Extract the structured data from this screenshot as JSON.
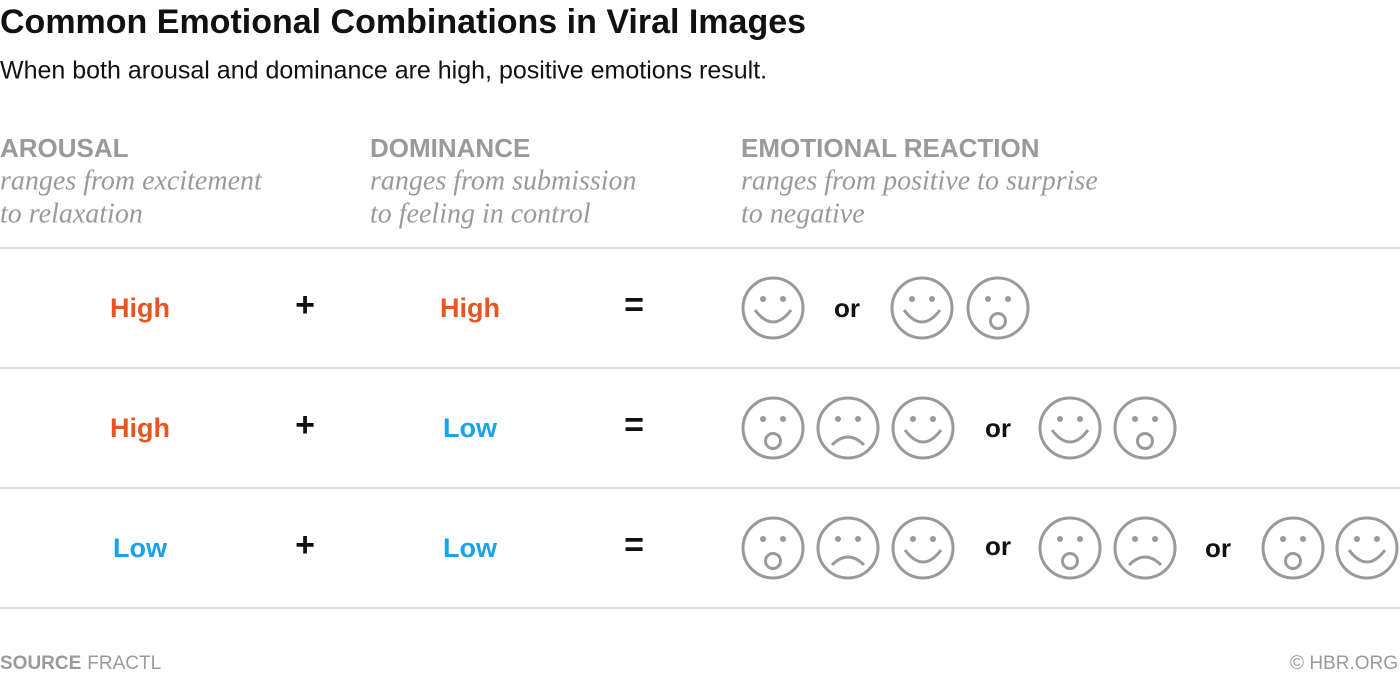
{
  "header": {
    "title": "Common Emotional Combinations in Viral Images",
    "subtitle": "When both arousal and dominance are high, positive emotions result."
  },
  "columns": [
    {
      "name": "AROUSAL",
      "description": [
        "ranges from excitement",
        "to relaxation"
      ]
    },
    {
      "name": "DOMINANCE",
      "description": [
        "ranges from submission",
        "to feeling in control"
      ]
    },
    {
      "name": "EMOTIONAL REACTION",
      "description": [
        "ranges from positive to surprise",
        "to negative"
      ]
    }
  ],
  "rows": [
    {
      "arousal": "High",
      "plus": "+",
      "dominance": "High",
      "equals": "=",
      "separators": [
        "or"
      ]
    },
    {
      "arousal": "High",
      "plus": "+",
      "dominance": "Low",
      "equals": "=",
      "separators": [
        "or"
      ]
    },
    {
      "arousal": "Low",
      "plus": "+",
      "dominance": "Low",
      "equals": "=",
      "separators": [
        "or",
        "or"
      ]
    }
  ],
  "footer": {
    "source_label": "SOURCE",
    "source": "FRACTL",
    "credit": "© HBR.ORG"
  }
}
